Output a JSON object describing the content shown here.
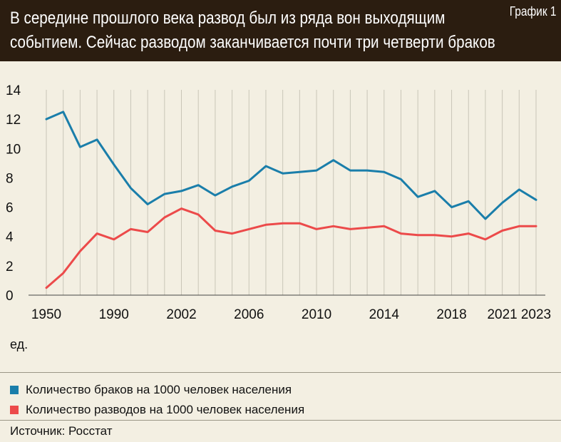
{
  "header": {
    "title_line1": "В середине прошлого века развод был из ряда вон выходящим",
    "title_line2": "событием. Сейчас разводом заканчивается почти три четверти браков",
    "badge": "График 1"
  },
  "unit_label": "ед.",
  "source": "Источник: Росстат",
  "colors": {
    "header_bg": "#2b1d10",
    "marriages": "#1a7eaa",
    "divorces": "#ec4a4a",
    "background": "#f3efe2"
  },
  "chart_data": {
    "type": "line",
    "title": "В середине прошлого века развод был из ряда вон выходящим событием. Сейчас разводом заканчивается почти три четверти браков",
    "ylabel": "ед.",
    "ylim": [
      0,
      14
    ],
    "yticks": [
      0,
      2,
      4,
      6,
      8,
      10,
      12,
      14
    ],
    "grid": "vertical",
    "x_tick_labels": [
      "1950",
      "1990",
      "2002",
      "2006",
      "2010",
      "2014",
      "2018",
      "2021",
      "2023"
    ],
    "x_tick_label_index": [
      0,
      4,
      8,
      12,
      16,
      20,
      24,
      27,
      29
    ],
    "series": [
      {
        "name": "Количество браков на 1000 человек населения",
        "color": "#1a7eaa",
        "values": [
          12.0,
          12.5,
          10.1,
          10.6,
          8.9,
          7.3,
          6.2,
          6.9,
          7.1,
          7.5,
          6.8,
          7.4,
          7.8,
          8.8,
          8.3,
          8.4,
          8.5,
          9.2,
          8.5,
          8.5,
          8.4,
          7.9,
          6.7,
          7.1,
          6.0,
          6.4,
          5.2,
          6.3,
          7.2,
          6.5
        ]
      },
      {
        "name": "Количество разводов на 1000 человек населения",
        "color": "#ec4a4a",
        "values": [
          0.5,
          1.5,
          3.0,
          4.2,
          3.8,
          4.5,
          4.3,
          5.3,
          5.9,
          5.5,
          4.4,
          4.2,
          4.5,
          4.8,
          4.9,
          4.9,
          4.5,
          4.7,
          4.5,
          4.6,
          4.7,
          4.2,
          4.1,
          4.1,
          4.0,
          4.2,
          3.8,
          4.4,
          4.7,
          4.7
        ]
      }
    ]
  }
}
